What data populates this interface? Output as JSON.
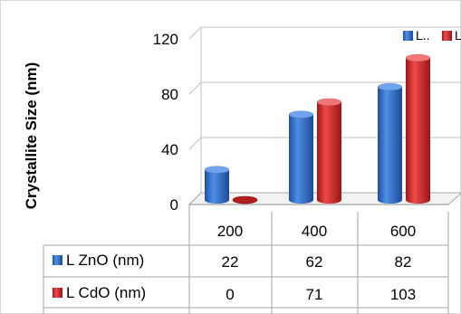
{
  "chart_data": {
    "type": "bar",
    "categories": [
      "200",
      "400",
      "600"
    ],
    "series": [
      {
        "name": "L ZnO (nm)",
        "legend_short": "L..",
        "color": "#2f6fd1",
        "values": [
          22,
          62,
          82
        ]
      },
      {
        "name": "L CdO (nm)",
        "legend_short": "L",
        "color": "#d62a2a",
        "values": [
          0,
          71,
          103
        ]
      }
    ],
    "ylabel": "Crystallite Size (nm)",
    "yticks": [
      "0",
      "40",
      "80",
      "120"
    ],
    "ylim": [
      0,
      120
    ],
    "grid": true,
    "legend_position": "top-right",
    "data_table": {
      "rows": [
        {
          "label": "L ZnO (nm)",
          "values": [
            "22",
            "62",
            "82"
          ]
        },
        {
          "label": "L CdO (nm)",
          "values": [
            "0",
            "71",
            "103"
          ]
        }
      ]
    }
  }
}
